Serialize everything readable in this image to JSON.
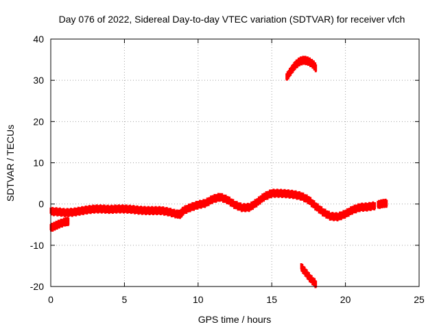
{
  "chart_data": {
    "type": "scatter",
    "title": "Day 076 of 2022, Sidereal Day-to-day VTEC variation (SDTVAR) for receiver vfch",
    "xlabel": "GPS time / hours",
    "ylabel": "SDTVAR / TECUs",
    "xlim": [
      0,
      25
    ],
    "ylim": [
      -20,
      40
    ],
    "xticks": [
      "0",
      "5",
      "10",
      "15",
      "20",
      "25"
    ],
    "yticks": [
      "-20",
      "-10",
      "0",
      "10",
      "20",
      "30",
      "40"
    ],
    "grid": true,
    "legend": "none",
    "marker_color": "#ff0000",
    "series": [
      {
        "name": "main",
        "points": [
          [
            0.0,
            -1.8
          ],
          [
            0.5,
            -1.9
          ],
          [
            1.0,
            -2.1
          ],
          [
            1.5,
            -2.0
          ],
          [
            2.0,
            -1.7
          ],
          [
            2.5,
            -1.4
          ],
          [
            3.0,
            -1.2
          ],
          [
            3.5,
            -1.2
          ],
          [
            4.0,
            -1.3
          ],
          [
            4.5,
            -1.2
          ],
          [
            5.0,
            -1.2
          ],
          [
            5.5,
            -1.3
          ],
          [
            6.0,
            -1.5
          ],
          [
            6.5,
            -1.6
          ],
          [
            7.0,
            -1.6
          ],
          [
            7.5,
            -1.6
          ],
          [
            8.0,
            -1.9
          ],
          [
            8.5,
            -2.4
          ],
          [
            8.8,
            -2.5
          ],
          [
            9.0,
            -1.6
          ],
          [
            9.5,
            -0.8
          ],
          [
            10.0,
            -0.2
          ],
          [
            10.5,
            0.2
          ],
          [
            11.0,
            1.2
          ],
          [
            11.5,
            1.7
          ],
          [
            12.0,
            1.0
          ],
          [
            12.5,
            -0.2
          ],
          [
            13.0,
            -0.9
          ],
          [
            13.5,
            -0.8
          ],
          [
            14.0,
            0.4
          ],
          [
            14.5,
            1.8
          ],
          [
            15.0,
            2.6
          ],
          [
            15.5,
            2.6
          ],
          [
            16.0,
            2.5
          ],
          [
            16.5,
            2.3
          ],
          [
            17.0,
            1.9
          ],
          [
            17.5,
            1.0
          ],
          [
            18.0,
            -0.6
          ],
          [
            18.5,
            -2.0
          ],
          [
            19.0,
            -3.0
          ],
          [
            19.5,
            -3.1
          ],
          [
            20.0,
            -2.4
          ],
          [
            20.5,
            -1.4
          ],
          [
            21.0,
            -0.8
          ],
          [
            21.5,
            -0.7
          ],
          [
            22.0,
            -0.4
          ]
        ]
      },
      {
        "name": "early-branch",
        "points": [
          [
            0.0,
            -5.8
          ],
          [
            0.3,
            -5.3
          ],
          [
            0.6,
            -4.8
          ],
          [
            1.0,
            -4.3
          ],
          [
            1.2,
            -4.2
          ]
        ]
      },
      {
        "name": "high-arc",
        "points": [
          [
            16.0,
            30.7
          ],
          [
            16.3,
            32.3
          ],
          [
            16.6,
            33.7
          ],
          [
            16.9,
            34.6
          ],
          [
            17.2,
            34.9
          ],
          [
            17.5,
            34.6
          ],
          [
            17.8,
            33.9
          ],
          [
            18.0,
            33.0
          ]
        ]
      },
      {
        "name": "low-segment",
        "points": [
          [
            17.0,
            -15.3
          ],
          [
            17.3,
            -16.6
          ],
          [
            17.6,
            -18.0
          ],
          [
            18.0,
            -19.4
          ]
        ]
      },
      {
        "name": "late-fragment",
        "points": [
          [
            22.2,
            -0.2
          ],
          [
            22.5,
            0.1
          ],
          [
            22.8,
            0.2
          ]
        ]
      }
    ]
  }
}
